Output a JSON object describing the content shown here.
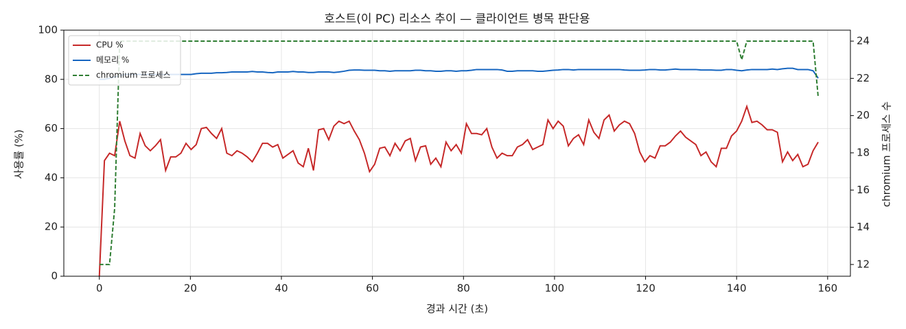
{
  "chart_data": {
    "type": "line",
    "title": "호스트(이 PC) 리소스 추이 — 클라이언트 병목 판단용",
    "xlabel": "경과 시간 (초)",
    "ylabel": "사용률 (%)",
    "y2label": "chromium 프로세스 수",
    "x": [
      0,
      1.12,
      2.24,
      3.36,
      4.48,
      5.6,
      6.72,
      7.84,
      8.96,
      10.08,
      11.2,
      12.32,
      13.44,
      14.56,
      15.68,
      16.8,
      17.92,
      19.04,
      20.16,
      21.28,
      22.4,
      23.52,
      24.64,
      25.76,
      26.88,
      28,
      29.12,
      30.24,
      31.36,
      32.48,
      33.6,
      34.72,
      35.84,
      36.96,
      38.08,
      39.2,
      40.32,
      41.44,
      42.56,
      43.68,
      44.8,
      45.92,
      47.04,
      48.16,
      49.28,
      50.4,
      51.52,
      52.64,
      53.76,
      54.88,
      56,
      57.12,
      58.24,
      59.36,
      60.48,
      61.6,
      62.72,
      63.84,
      64.96,
      66.08,
      67.2,
      68.32,
      69.44,
      70.56,
      71.68,
      72.8,
      73.92,
      75.04,
      76.16,
      77.28,
      78.4,
      79.52,
      80.64,
      81.76,
      82.88,
      84,
      85.12,
      86.24,
      87.36,
      88.48,
      89.6,
      90.72,
      91.84,
      92.96,
      94.08,
      95.2,
      96.32,
      97.44,
      98.56,
      99.68,
      100.8,
      101.92,
      103.04,
      104.16,
      105.28,
      106.4,
      107.52,
      108.64,
      109.76,
      110.88,
      112,
      113.12,
      114.24,
      115.36,
      116.48,
      117.6,
      118.72,
      119.84,
      120.96,
      122.08,
      123.2,
      124.32,
      125.44,
      126.56,
      127.68,
      128.8,
      129.92,
      131.04,
      132.16,
      133.28,
      134.4,
      135.52,
      136.64,
      137.76,
      138.88,
      140,
      141.12,
      142.24,
      143.36,
      144.48,
      145.6,
      146.72,
      147.84,
      148.96,
      150.08,
      151.2,
      152.32,
      153.44,
      154.56,
      155.68,
      156.8,
      157.92
    ],
    "series": [
      {
        "name": "CPU %",
        "color": "#c62828",
        "values": [
          0,
          47,
          50,
          49,
          63,
          55,
          49,
          48,
          58,
          53,
          51,
          53,
          55.5,
          43,
          48.5,
          48.5,
          50,
          54,
          51.5,
          53.5,
          60,
          60.5,
          58,
          56,
          60,
          50,
          49,
          51,
          50,
          48.5,
          46.5,
          50,
          54,
          54,
          52.5,
          53.5,
          48,
          49.5,
          51,
          46,
          44.5,
          52,
          43,
          59.5,
          60,
          55.5,
          61,
          63,
          62,
          63,
          59,
          55.5,
          50,
          42.5,
          45.5,
          52,
          52.5,
          49,
          54,
          51,
          55,
          56,
          47,
          52.5,
          53,
          45.5,
          48,
          44.5,
          54.5,
          51,
          53.5,
          50,
          62,
          58,
          58,
          57.5,
          60,
          52.5,
          48,
          50,
          49,
          49,
          52.5,
          53.5,
          55.5,
          51.5,
          52.5,
          53.5,
          63.5,
          60,
          63,
          61,
          53,
          56,
          57.5,
          53.5,
          63.5,
          58.5,
          56,
          63.5,
          65.5,
          59,
          61.5,
          63,
          62,
          58,
          50.5,
          46.5,
          49,
          48,
          53,
          53,
          54.5,
          57,
          59,
          56.5,
          55,
          53.5,
          49,
          50.5,
          46.5,
          44.5,
          52,
          52,
          57,
          59,
          63,
          69,
          62.5,
          63,
          61.5,
          59.5,
          59.5,
          58.5,
          46.5,
          50.5,
          47,
          49.5,
          44.5,
          45.5,
          51,
          54.5
        ]
      },
      {
        "name": "메모리 %",
        "color": "#1565c0",
        "values": [
          80,
          80,
          80.5,
          81,
          81.5,
          82,
          82,
          82,
          82,
          82,
          82,
          82,
          82,
          82,
          82,
          82,
          82,
          82,
          82,
          82.3,
          82.5,
          82.5,
          82.5,
          82.7,
          82.7,
          82.8,
          83,
          83,
          83,
          83,
          83.2,
          83,
          83,
          82.8,
          82.7,
          83,
          83,
          83,
          83.2,
          83,
          83,
          82.8,
          82.8,
          83,
          83,
          83,
          82.8,
          83,
          83.3,
          83.7,
          83.8,
          83.8,
          83.7,
          83.7,
          83.7,
          83.5,
          83.5,
          83.3,
          83.5,
          83.5,
          83.5,
          83.5,
          83.7,
          83.7,
          83.5,
          83.5,
          83.3,
          83.3,
          83.5,
          83.5,
          83.3,
          83.5,
          83.5,
          83.7,
          84,
          84,
          84,
          84,
          84,
          83.8,
          83.3,
          83.3,
          83.5,
          83.5,
          83.5,
          83.5,
          83.3,
          83.3,
          83.5,
          83.7,
          83.8,
          84,
          84,
          83.8,
          84,
          84,
          84,
          84,
          84,
          84,
          84,
          84,
          84,
          83.8,
          83.7,
          83.7,
          83.7,
          83.8,
          84,
          84,
          83.8,
          83.8,
          84,
          84.2,
          84,
          84,
          84,
          84,
          83.8,
          83.8,
          83.8,
          83.7,
          83.7,
          84,
          84,
          83.7,
          83.5,
          83.8,
          84,
          84,
          84,
          84,
          84.2,
          84,
          84.3,
          84.5,
          84.5,
          84,
          84,
          84,
          83.5,
          80.5
        ]
      },
      {
        "name": "chromium 프로세스",
        "color": "#2e7d32",
        "dashed": true,
        "axis": "y2",
        "values": [
          12,
          12,
          12,
          15,
          24,
          24,
          24,
          24,
          24,
          24,
          24,
          24,
          24,
          24,
          24,
          24,
          24,
          24,
          24,
          24,
          24,
          24,
          24,
          24,
          24,
          24,
          24,
          24,
          24,
          24,
          24,
          24,
          24,
          24,
          24,
          24,
          24,
          24,
          24,
          24,
          24,
          24,
          24,
          24,
          24,
          24,
          24,
          24,
          24,
          24,
          24,
          24,
          24,
          24,
          24,
          24,
          24,
          24,
          24,
          24,
          24,
          24,
          24,
          24,
          24,
          24,
          24,
          24,
          24,
          24,
          24,
          24,
          24,
          24,
          24,
          24,
          24,
          24,
          24,
          24,
          24,
          24,
          24,
          24,
          24,
          24,
          24,
          24,
          24,
          24,
          24,
          24,
          24,
          24,
          24,
          24,
          24,
          24,
          24,
          24,
          24,
          24,
          24,
          24,
          24,
          24,
          24,
          24,
          24,
          24,
          24,
          24,
          24,
          24,
          24,
          24,
          24,
          24,
          24,
          24,
          24,
          24,
          24,
          24,
          24,
          24,
          23,
          24,
          24,
          24,
          24,
          24,
          24,
          24,
          24,
          24,
          24,
          24,
          24,
          24,
          24,
          21
        ]
      }
    ],
    "xlim": [
      -7.8,
      165
    ],
    "xticks": [
      0,
      20,
      40,
      60,
      80,
      100,
      120,
      140,
      160
    ],
    "ylim": [
      0,
      100
    ],
    "yticks": [
      0,
      20,
      40,
      60,
      80,
      100
    ],
    "y2lim": [
      11.37,
      24.59
    ],
    "y2ticks": [
      12,
      14,
      16,
      18,
      20,
      22,
      24
    ],
    "grid": true,
    "legend": "upper-left"
  }
}
